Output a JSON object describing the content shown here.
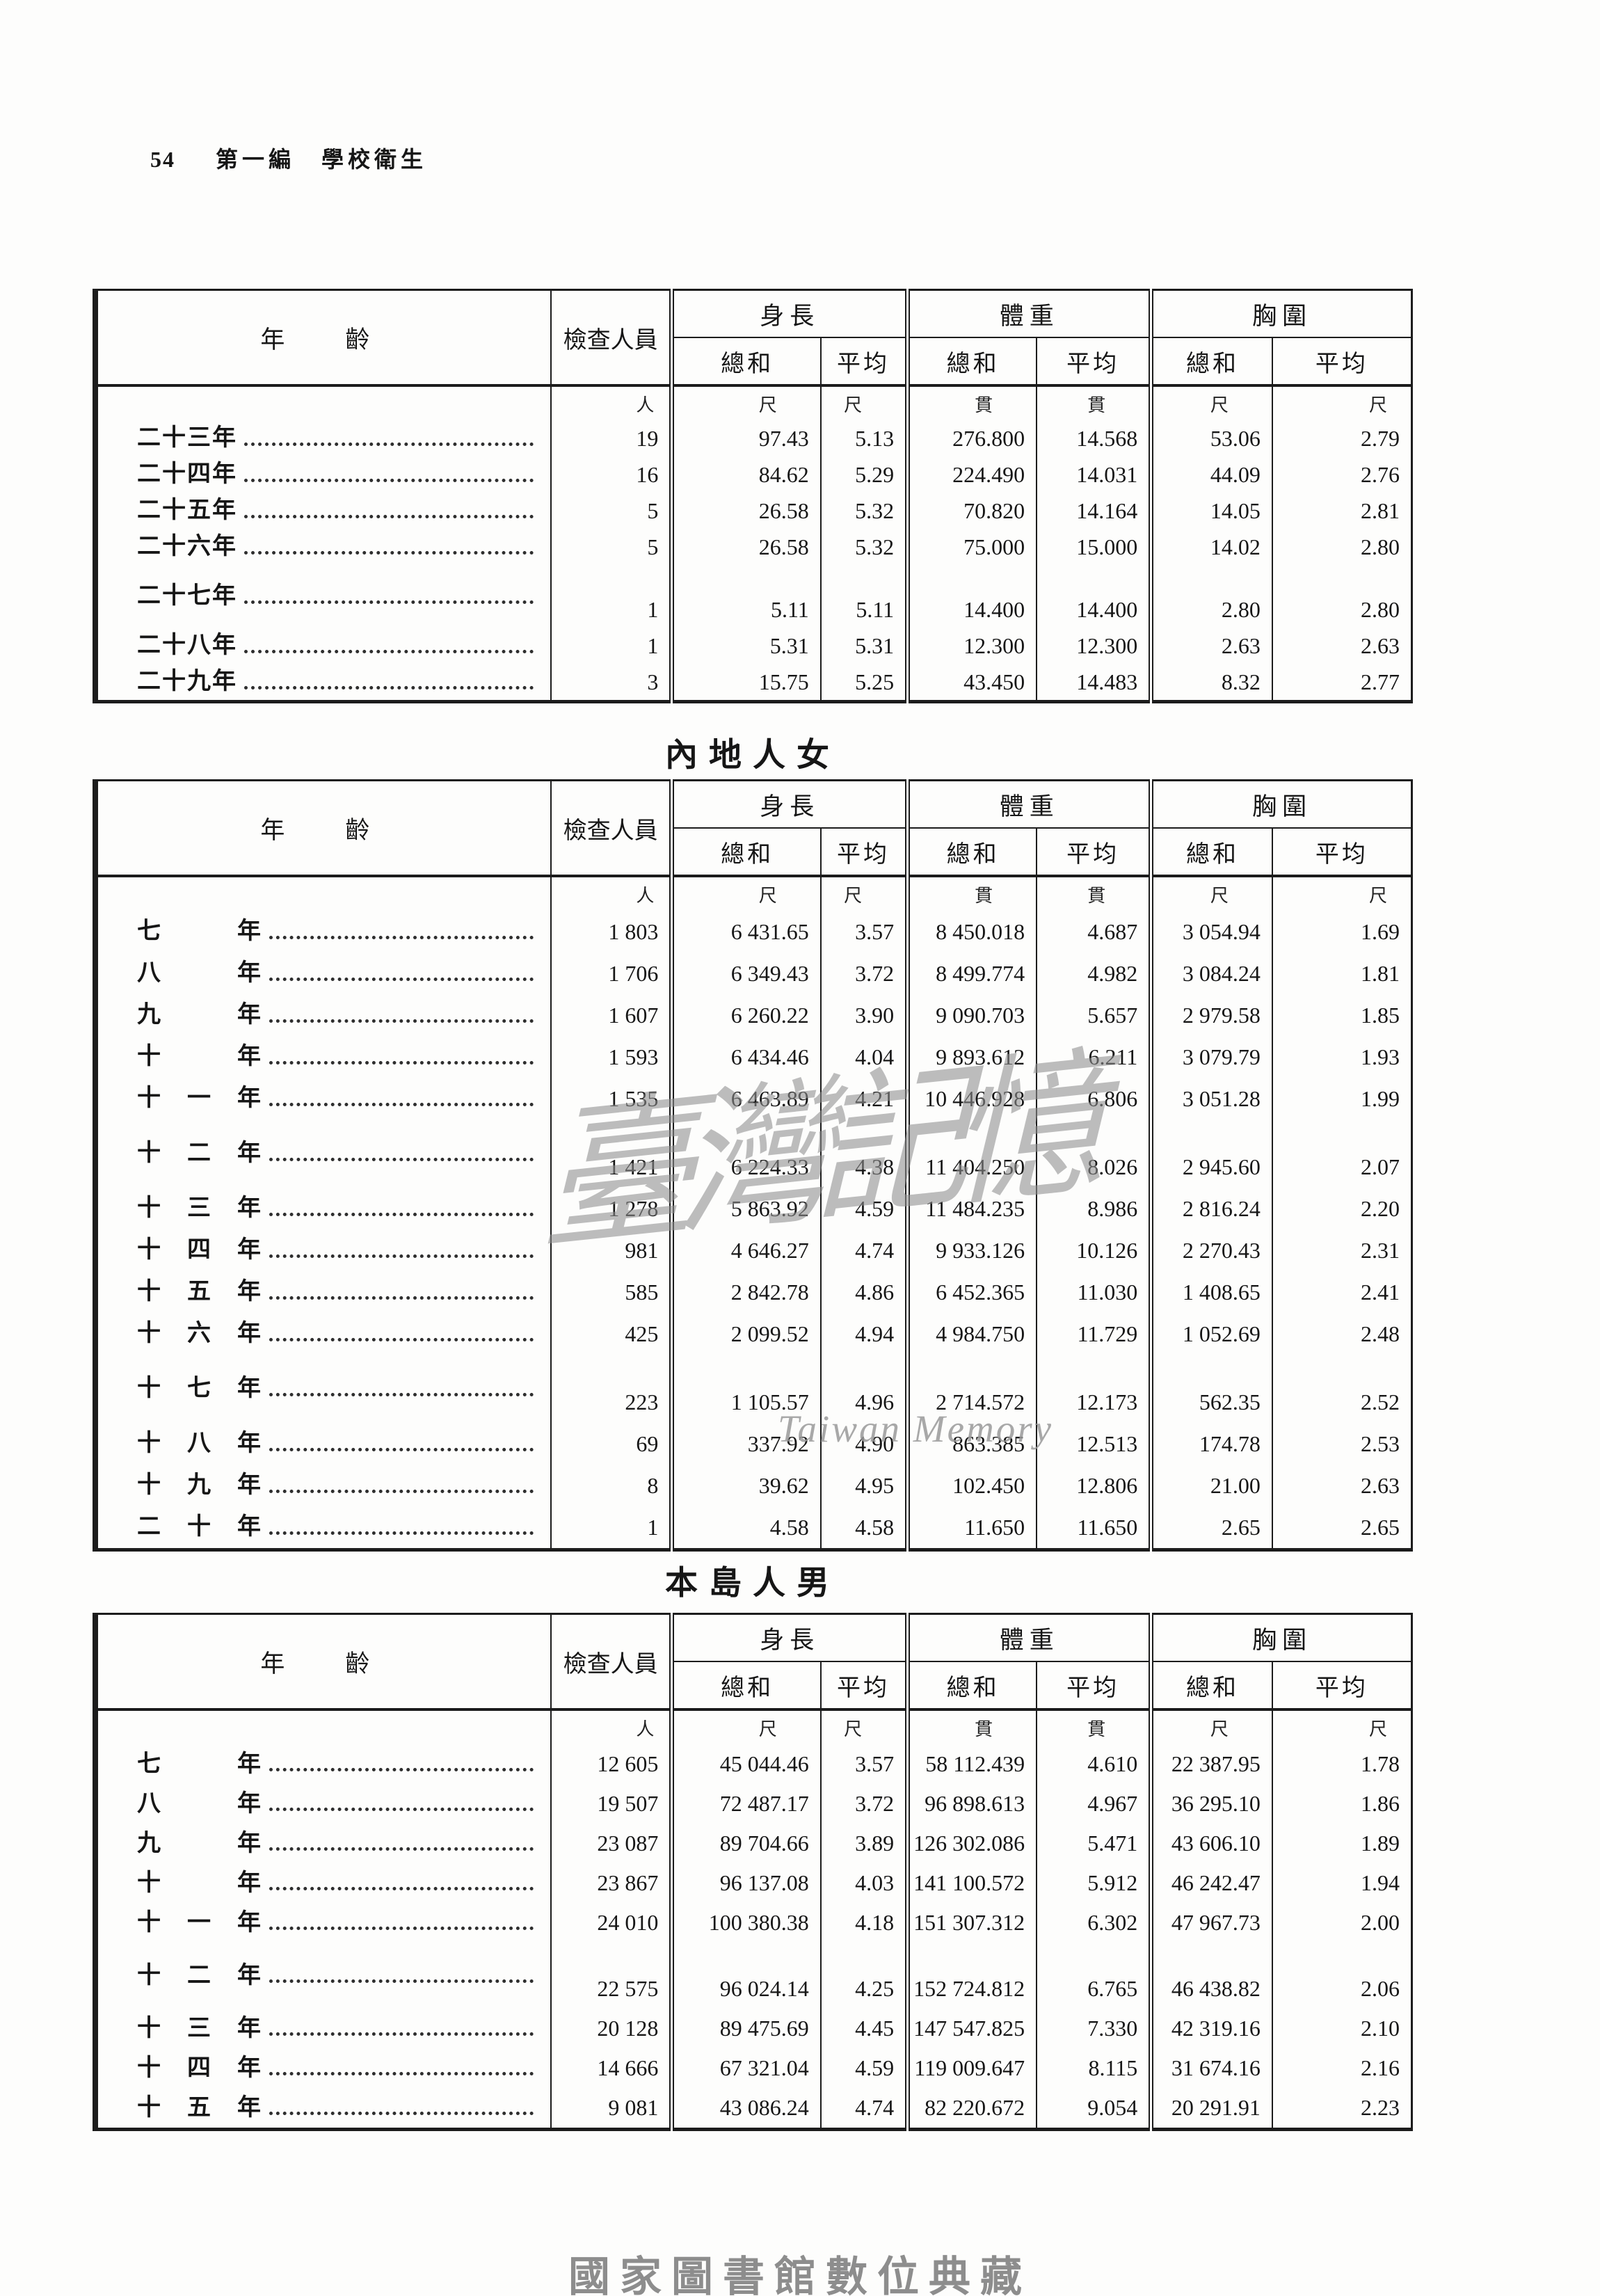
{
  "page": {
    "page_number": "54",
    "section_header": "第一編　學校衛生",
    "footer": "國家圖書館數位典藏",
    "watermark_cjk": "臺灣記憶",
    "watermark_latin": "Taiwan Memory"
  },
  "table_header": {
    "age": "年　齡",
    "examined": "檢查人員",
    "groups": [
      {
        "label": "身長",
        "sub": [
          "總和",
          "平均"
        ]
      },
      {
        "label": "體重",
        "sub": [
          "總和",
          "平均"
        ]
      },
      {
        "label": "胸圍",
        "sub": [
          "總和",
          "平均"
        ]
      }
    ],
    "units": [
      "人",
      "尺",
      "尺",
      "貫",
      "貫",
      "尺",
      "尺"
    ]
  },
  "tables": [
    {
      "title": "",
      "rows": [
        {
          "label": "二十三年",
          "gap": false,
          "cells": [
            "19",
            "97.43",
            "5.13",
            "276.800",
            "14.568",
            "53.06",
            "2.79"
          ]
        },
        {
          "label": "二十四年",
          "gap": false,
          "cells": [
            "16",
            "84.62",
            "5.29",
            "224.490",
            "14.031",
            "44.09",
            "2.76"
          ]
        },
        {
          "label": "二十五年",
          "gap": false,
          "cells": [
            "5",
            "26.58",
            "5.32",
            "70.820",
            "14.164",
            "14.05",
            "2.81"
          ]
        },
        {
          "label": "二十六年",
          "gap": false,
          "cells": [
            "5",
            "26.58",
            "5.32",
            "75.000",
            "15.000",
            "14.02",
            "2.80"
          ]
        },
        {
          "label": "二十七年",
          "gap": true,
          "cells": [
            "1",
            "5.11",
            "5.11",
            "14.400",
            "14.400",
            "2.80",
            "2.80"
          ]
        },
        {
          "label": "二十八年",
          "gap": false,
          "cells": [
            "1",
            "5.31",
            "5.31",
            "12.300",
            "12.300",
            "2.63",
            "2.63"
          ]
        },
        {
          "label": "二十九年",
          "gap": false,
          "cells": [
            "3",
            "15.75",
            "5.25",
            "43.450",
            "14.483",
            "8.32",
            "2.77"
          ]
        }
      ]
    },
    {
      "title": "內地人女",
      "rows": [
        {
          "label": "七　　　年",
          "gap": false,
          "cells": [
            "1 803",
            "6 431.65",
            "3.57",
            "8 450.018",
            "4.687",
            "3 054.94",
            "1.69"
          ]
        },
        {
          "label": "八　　　年",
          "gap": false,
          "cells": [
            "1 706",
            "6 349.43",
            "3.72",
            "8 499.774",
            "4.982",
            "3 084.24",
            "1.81"
          ]
        },
        {
          "label": "九　　　年",
          "gap": false,
          "cells": [
            "1 607",
            "6 260.22",
            "3.90",
            "9 090.703",
            "5.657",
            "2 979.58",
            "1.85"
          ]
        },
        {
          "label": "十　　　年",
          "gap": false,
          "cells": [
            "1 593",
            "6 434.46",
            "4.04",
            "9 893.612",
            "6.211",
            "3 079.79",
            "1.93"
          ]
        },
        {
          "label": "十　一　年",
          "gap": false,
          "cells": [
            "1 535",
            "6 463.89",
            "4.21",
            "10 446.928",
            "6.806",
            "3 051.28",
            "1.99"
          ]
        },
        {
          "label": "十　二　年",
          "gap": true,
          "cells": [
            "1 421",
            "6 224.33",
            "4.38",
            "11 404.250",
            "8.026",
            "2 945.60",
            "2.07"
          ]
        },
        {
          "label": "十　三　年",
          "gap": false,
          "cells": [
            "1 278",
            "5 863.92",
            "4.59",
            "11 484.235",
            "8.986",
            "2 816.24",
            "2.20"
          ]
        },
        {
          "label": "十　四　年",
          "gap": false,
          "cells": [
            "981",
            "4 646.27",
            "4.74",
            "9 933.126",
            "10.126",
            "2 270.43",
            "2.31"
          ]
        },
        {
          "label": "十　五　年",
          "gap": false,
          "cells": [
            "585",
            "2 842.78",
            "4.86",
            "6 452.365",
            "11.030",
            "1 408.65",
            "2.41"
          ]
        },
        {
          "label": "十　六　年",
          "gap": false,
          "cells": [
            "425",
            "2 099.52",
            "4.94",
            "4 984.750",
            "11.729",
            "1 052.69",
            "2.48"
          ]
        },
        {
          "label": "十　七　年",
          "gap": true,
          "cells": [
            "223",
            "1 105.57",
            "4.96",
            "2 714.572",
            "12.173",
            "562.35",
            "2.52"
          ]
        },
        {
          "label": "十　八　年",
          "gap": false,
          "cells": [
            "69",
            "337.92",
            "4.90",
            "863.385",
            "12.513",
            "174.78",
            "2.53"
          ]
        },
        {
          "label": "十　九　年",
          "gap": false,
          "cells": [
            "8",
            "39.62",
            "4.95",
            "102.450",
            "12.806",
            "21.00",
            "2.63"
          ]
        },
        {
          "label": "二　十　年",
          "gap": false,
          "cells": [
            "1",
            "4.58",
            "4.58",
            "11.650",
            "11.650",
            "2.65",
            "2.65"
          ]
        }
      ]
    },
    {
      "title": "本島人男",
      "rows": [
        {
          "label": "七　　　年",
          "gap": false,
          "cells": [
            "12 605",
            "45 044.46",
            "3.57",
            "58 112.439",
            "4.610",
            "22 387.95",
            "1.78"
          ]
        },
        {
          "label": "八　　　年",
          "gap": false,
          "cells": [
            "19 507",
            "72 487.17",
            "3.72",
            "96 898.613",
            "4.967",
            "36 295.10",
            "1.86"
          ]
        },
        {
          "label": "九　　　年",
          "gap": false,
          "cells": [
            "23 087",
            "89 704.66",
            "3.89",
            "126 302.086",
            "5.471",
            "43 606.10",
            "1.89"
          ]
        },
        {
          "label": "十　　　年",
          "gap": false,
          "cells": [
            "23 867",
            "96 137.08",
            "4.03",
            "141 100.572",
            "5.912",
            "46 242.47",
            "1.94"
          ]
        },
        {
          "label": "十　一　年",
          "gap": false,
          "cells": [
            "24 010",
            "100 380.38",
            "4.18",
            "151 307.312",
            "6.302",
            "47 967.73",
            "2.00"
          ]
        },
        {
          "label": "十　二　年",
          "gap": true,
          "cells": [
            "22 575",
            "96 024.14",
            "4.25",
            "152 724.812",
            "6.765",
            "46 438.82",
            "2.06"
          ]
        },
        {
          "label": "十　三　年",
          "gap": false,
          "cells": [
            "20 128",
            "89 475.69",
            "4.45",
            "147 547.825",
            "7.330",
            "42 319.16",
            "2.10"
          ]
        },
        {
          "label": "十　四　年",
          "gap": false,
          "cells": [
            "14 666",
            "67 321.04",
            "4.59",
            "119 009.647",
            "8.115",
            "31 674.16",
            "2.16"
          ]
        },
        {
          "label": "十　五　年",
          "gap": false,
          "cells": [
            "9 081",
            "43 086.24",
            "4.74",
            "82 220.672",
            "9.054",
            "20 291.91",
            "2.23"
          ]
        }
      ]
    }
  ]
}
